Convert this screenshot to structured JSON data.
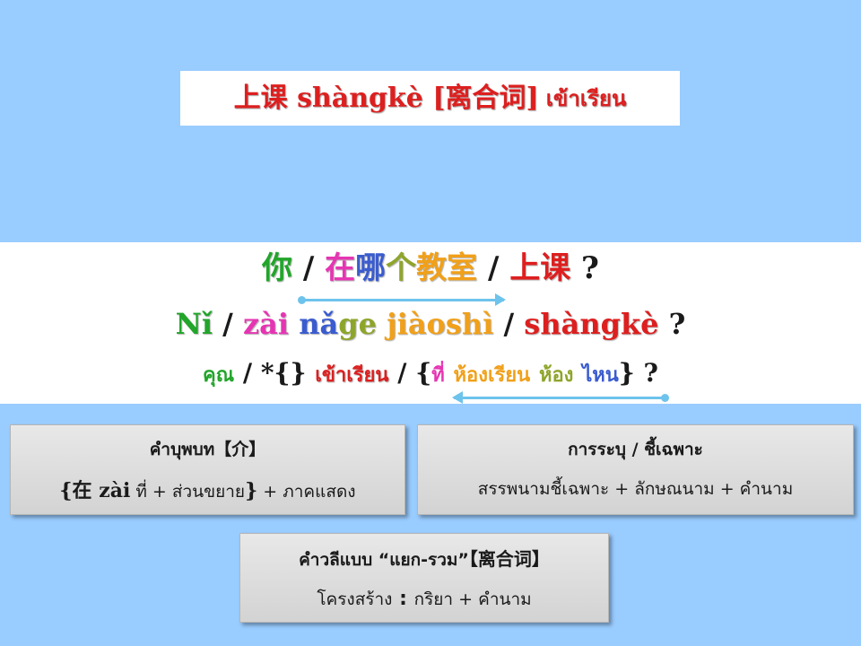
{
  "title": {
    "chinese": "上课 shàngkè [离合词]",
    "thai": "เข้าเรียน"
  },
  "sentence": {
    "line1": {
      "ni": "你",
      "sep1": " / ",
      "zai": "在",
      "na": "哪",
      "ge": "个",
      "jiaoshi": "教室",
      "sep2": " / ",
      "shangke": "上课",
      "q": " ?"
    },
    "line2": {
      "ni": "Nǐ",
      "sep1": " / ",
      "zai": "zài",
      "sp1": " ",
      "na": "nǎ",
      "ge": "ge",
      "sp2": " ",
      "jiaoshi": "jiàoshì",
      "sep2": " / ",
      "shangke": "shàngkè",
      "q": " ?"
    },
    "line3": {
      "khun": "คุณ",
      "sep1": " / ",
      "star": "*{}",
      "sp1": " ",
      "khaorian": "เข้าเรียน",
      "sep2": " / {",
      "thi": "ที่",
      "sp2": " ",
      "hongrian": "ห้องเรียน",
      "sp3": " ",
      "hong": "ห้อง",
      "sp4": " ",
      "nai": "ไหน",
      "end": "} ?"
    }
  },
  "boxes": {
    "preposition": {
      "heading_a": "คำบุพบท",
      "heading_b": "【介】",
      "line_a": "{在 zài",
      "line_b": " ที่ + ส่วนขยาย",
      "line_c": "}",
      "line_d": " + ภาคแสดง"
    },
    "specifier": {
      "heading": "การระบุ / ชี้เฉพาะ",
      "line": "สรรพนามชี้เฉพาะ + ลักษณนาม + คำนาม"
    },
    "separable": {
      "heading_a": "คำวลีแบบ “แยก-รวม”",
      "heading_b": "【离合词】",
      "line_a": "โครงสร้าง",
      "line_b": " : ",
      "line_c": "กริยา + คำนาม"
    }
  },
  "colors": {
    "background": "#99ccff",
    "red": "#dd1f1f",
    "green": "#22a52a",
    "magenta": "#e635b3",
    "blue": "#3a5ccf",
    "orange": "#f0a01a",
    "arrow": "#6ec3ec"
  },
  "icons": [
    "arrow-right-icon",
    "arrow-left-icon"
  ]
}
